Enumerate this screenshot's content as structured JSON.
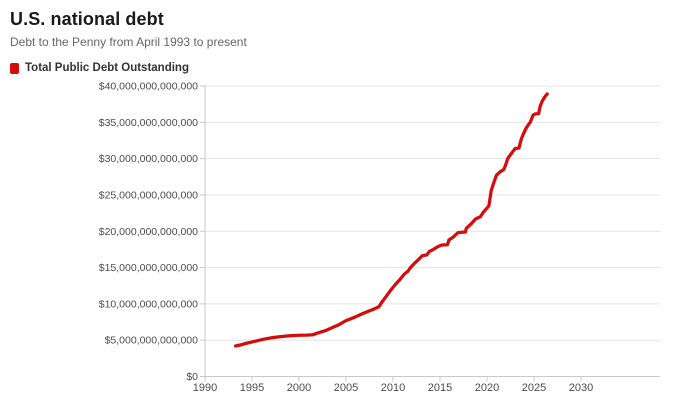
{
  "header": {
    "title": "U.S. national debt",
    "subtitle": "Debt to the Penny from April 1993 to present"
  },
  "legend": {
    "label": "Total Public Debt Outstanding"
  },
  "colors": {
    "line": "#d60b0b",
    "gridline": "#e4e4e4",
    "axis": "#c9c9c9",
    "tick": "#c9c9c9",
    "axis_label": "#4d4d4d"
  },
  "chart_data": {
    "type": "line",
    "title": "U.S. national debt",
    "subtitle": "Debt to the Penny from April 1993 to present",
    "series_name": "Total Public Debt Outstanding",
    "line_color": "#d60b0b",
    "grid": "horizontal",
    "legend_position": "top-left",
    "xlim": [
      1990,
      2030
    ],
    "x_ticks": [
      "1990",
      "1995",
      "2000",
      "2005",
      "2010",
      "2015",
      "2020",
      "2025",
      "2030"
    ],
    "ylim_dollars": [
      0,
      40000000000000
    ],
    "y_ticks": [
      {
        "value_trillions": 0,
        "label": "$0"
      },
      {
        "value_trillions": 5,
        "label": "$5,000,000,000,000"
      },
      {
        "value_trillions": 10,
        "label": "$10,000,000,000,000"
      },
      {
        "value_trillions": 15,
        "label": "$15,000,000,000,000"
      },
      {
        "value_trillions": 20,
        "label": "$20,000,000,000,000"
      },
      {
        "value_trillions": 25,
        "label": "$25,000,000,000,000"
      },
      {
        "value_trillions": 30,
        "label": "$30,000,000,000,000"
      },
      {
        "value_trillions": 35,
        "label": "$35,000,000,000,000"
      },
      {
        "value_trillions": 40,
        "label": "$40,000,000,000,000"
      }
    ],
    "series": [
      {
        "name": "Total Public Debt Outstanding",
        "units": "trillions of dollars",
        "points_year_value": [
          [
            1993.25,
            4.2
          ],
          [
            1993.8,
            4.35
          ],
          [
            1994.3,
            4.55
          ],
          [
            1994.8,
            4.7
          ],
          [
            1995.3,
            4.85
          ],
          [
            1995.8,
            5.0
          ],
          [
            1996.5,
            5.2
          ],
          [
            1997.2,
            5.35
          ],
          [
            1998.0,
            5.5
          ],
          [
            1999.0,
            5.6
          ],
          [
            2000.0,
            5.67
          ],
          [
            2000.8,
            5.7
          ],
          [
            2001.5,
            5.75
          ],
          [
            2002.0,
            6.0
          ],
          [
            2002.8,
            6.3
          ],
          [
            2003.5,
            6.7
          ],
          [
            2004.2,
            7.1
          ],
          [
            2005.0,
            7.7
          ],
          [
            2005.8,
            8.1
          ],
          [
            2006.5,
            8.5
          ],
          [
            2007.2,
            8.9
          ],
          [
            2007.8,
            9.2
          ],
          [
            2008.5,
            9.6
          ],
          [
            2008.8,
            10.2
          ],
          [
            2009.2,
            10.9
          ],
          [
            2009.7,
            11.8
          ],
          [
            2010.2,
            12.6
          ],
          [
            2010.7,
            13.3
          ],
          [
            2011.2,
            14.1
          ],
          [
            2011.6,
            14.5
          ],
          [
            2011.85,
            15.0
          ],
          [
            2012.3,
            15.6
          ],
          [
            2012.8,
            16.2
          ],
          [
            2013.1,
            16.6
          ],
          [
            2013.6,
            16.74
          ],
          [
            2013.85,
            17.2
          ],
          [
            2014.3,
            17.5
          ],
          [
            2014.8,
            17.9
          ],
          [
            2015.2,
            18.1
          ],
          [
            2015.8,
            18.15
          ],
          [
            2015.95,
            18.8
          ],
          [
            2016.4,
            19.2
          ],
          [
            2016.9,
            19.8
          ],
          [
            2017.3,
            19.85
          ],
          [
            2017.7,
            19.9
          ],
          [
            2017.8,
            20.4
          ],
          [
            2018.3,
            21.0
          ],
          [
            2018.8,
            21.7
          ],
          [
            2019.3,
            22.0
          ],
          [
            2019.6,
            22.6
          ],
          [
            2020.0,
            23.2
          ],
          [
            2020.2,
            23.5
          ],
          [
            2020.45,
            25.6
          ],
          [
            2020.7,
            26.6
          ],
          [
            2021.0,
            27.7
          ],
          [
            2021.4,
            28.2
          ],
          [
            2021.75,
            28.45
          ],
          [
            2021.95,
            29.0
          ],
          [
            2022.2,
            30.0
          ],
          [
            2022.7,
            30.9
          ],
          [
            2023.0,
            31.4
          ],
          [
            2023.4,
            31.46
          ],
          [
            2023.65,
            32.7
          ],
          [
            2023.9,
            33.5
          ],
          [
            2024.2,
            34.3
          ],
          [
            2024.6,
            35.0
          ],
          [
            2024.9,
            36.0
          ],
          [
            2025.1,
            36.15
          ],
          [
            2025.5,
            36.2
          ],
          [
            2025.65,
            37.2
          ],
          [
            2025.9,
            38.0
          ],
          [
            2026.2,
            38.6
          ],
          [
            2026.4,
            38.9
          ]
        ]
      }
    ]
  }
}
